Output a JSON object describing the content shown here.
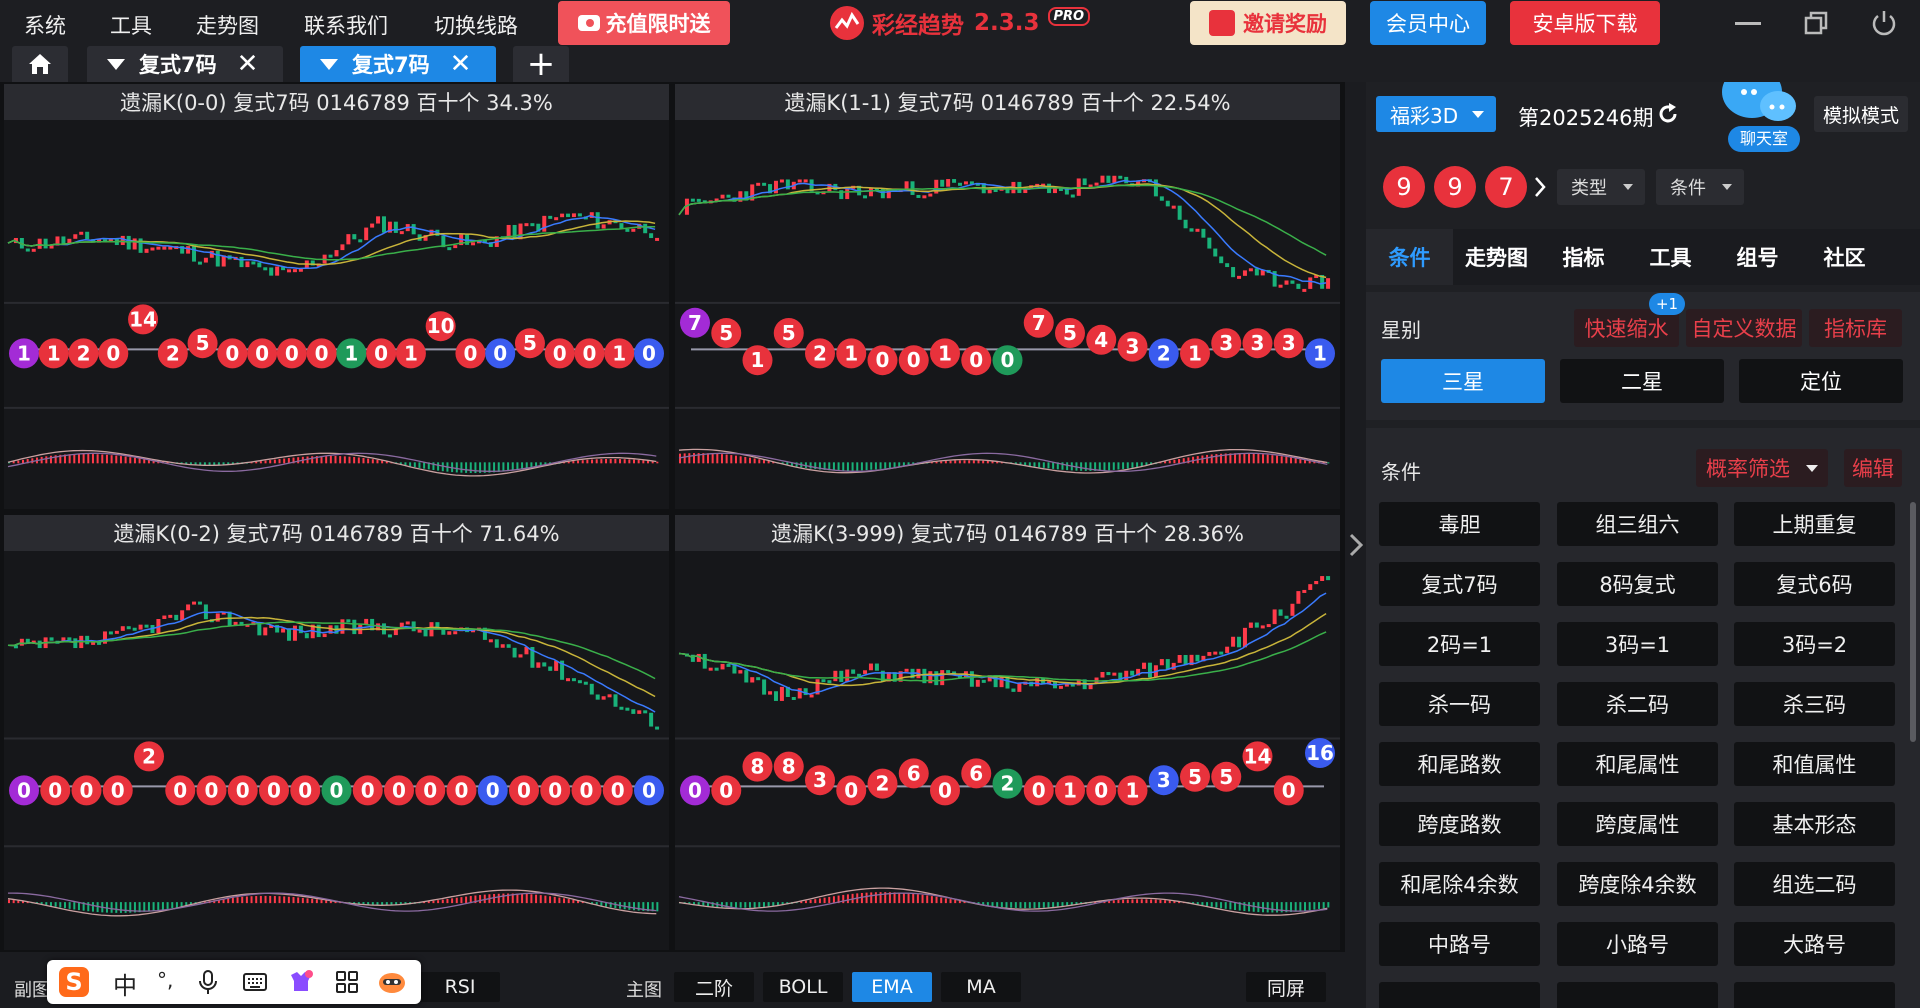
{
  "menu": [
    "系统",
    "工具",
    "走势图",
    "联系我们",
    "切换线路"
  ],
  "promo": "充值限时送",
  "app": {
    "name": "彩经趋势",
    "version": "2.3.3",
    "badge": "PRO"
  },
  "header_buttons": {
    "invite": "邀请奖励",
    "member": "会员中心",
    "android": "安卓版下载"
  },
  "tabs": [
    {
      "label": "复式7码"
    },
    {
      "label": "复式7码"
    }
  ],
  "colors": {
    "red": "#e8323c",
    "blue": "#1e88e5",
    "green": "#1f9a5a",
    "purple": "#a32bd6",
    "ball_blue": "#3a5bef"
  },
  "panels": [
    {
      "title": "遗漏K(0-0)  复式7码  0146789  百十个  34.3%",
      "balls": [
        {
          "n": "1",
          "c": "purple"
        },
        {
          "n": "1",
          "c": "red"
        },
        {
          "n": "2",
          "c": "red"
        },
        {
          "n": "0",
          "c": "red"
        },
        {
          "n": "14",
          "c": "red",
          "up": 1
        },
        {
          "n": "2",
          "c": "red"
        },
        {
          "n": "5",
          "c": "red",
          "up": 0.3
        },
        {
          "n": "0",
          "c": "red"
        },
        {
          "n": "0",
          "c": "red"
        },
        {
          "n": "0",
          "c": "red"
        },
        {
          "n": "0",
          "c": "red"
        },
        {
          "n": "1",
          "c": "green"
        },
        {
          "n": "0",
          "c": "red"
        },
        {
          "n": "1",
          "c": "red"
        },
        {
          "n": "10",
          "c": "red",
          "up": 0.8
        },
        {
          "n": "0",
          "c": "red"
        },
        {
          "n": "0",
          "c": "blue"
        },
        {
          "n": "5",
          "c": "red",
          "up": 0.3
        },
        {
          "n": "0",
          "c": "red"
        },
        {
          "n": "0",
          "c": "red"
        },
        {
          "n": "1",
          "c": "red"
        },
        {
          "n": "0",
          "c": "blue"
        }
      ]
    },
    {
      "title": "遗漏K(1-1)  复式7码  0146789  百十个  22.54%",
      "balls": [
        {
          "n": "7",
          "c": "purple",
          "up": 0.9
        },
        {
          "n": "5",
          "c": "red",
          "up": 0.6
        },
        {
          "n": "1",
          "c": "red",
          "up": -0.2
        },
        {
          "n": "5",
          "c": "red",
          "up": 0.6
        },
        {
          "n": "2",
          "c": "red"
        },
        {
          "n": "1",
          "c": "red"
        },
        {
          "n": "0",
          "c": "red",
          "up": -0.2
        },
        {
          "n": "0",
          "c": "red",
          "up": -0.2
        },
        {
          "n": "1",
          "c": "red"
        },
        {
          "n": "0",
          "c": "red",
          "up": -0.2
        },
        {
          "n": "0",
          "c": "green",
          "up": -0.2
        },
        {
          "n": "7",
          "c": "red",
          "up": 0.9
        },
        {
          "n": "5",
          "c": "red",
          "up": 0.6
        },
        {
          "n": "4",
          "c": "red",
          "up": 0.4
        },
        {
          "n": "3",
          "c": "red",
          "up": 0.2
        },
        {
          "n": "2",
          "c": "blue"
        },
        {
          "n": "1",
          "c": "red"
        },
        {
          "n": "3",
          "c": "red",
          "up": 0.3
        },
        {
          "n": "3",
          "c": "red",
          "up": 0.3
        },
        {
          "n": "3",
          "c": "red",
          "up": 0.3
        },
        {
          "n": "1",
          "c": "blue"
        }
      ]
    },
    {
      "title": "遗漏K(0-2)  复式7码  0146789  百十个  71.64%",
      "balls": [
        {
          "n": "0",
          "c": "purple"
        },
        {
          "n": "0",
          "c": "red"
        },
        {
          "n": "0",
          "c": "red"
        },
        {
          "n": "0",
          "c": "red"
        },
        {
          "n": "2",
          "c": "red",
          "up": 1
        },
        {
          "n": "0",
          "c": "red"
        },
        {
          "n": "0",
          "c": "red"
        },
        {
          "n": "0",
          "c": "red"
        },
        {
          "n": "0",
          "c": "red"
        },
        {
          "n": "0",
          "c": "red"
        },
        {
          "n": "0",
          "c": "green"
        },
        {
          "n": "0",
          "c": "red"
        },
        {
          "n": "0",
          "c": "red"
        },
        {
          "n": "0",
          "c": "red"
        },
        {
          "n": "0",
          "c": "red"
        },
        {
          "n": "0",
          "c": "blue"
        },
        {
          "n": "0",
          "c": "red"
        },
        {
          "n": "0",
          "c": "red"
        },
        {
          "n": "0",
          "c": "red"
        },
        {
          "n": "0",
          "c": "red"
        },
        {
          "n": "0",
          "c": "blue"
        }
      ]
    },
    {
      "title": "遗漏K(3-999)  复式7码  0146789  百十个  28.36%",
      "balls": [
        {
          "n": "0",
          "c": "purple"
        },
        {
          "n": "0",
          "c": "red"
        },
        {
          "n": "8",
          "c": "red",
          "up": 0.7
        },
        {
          "n": "8",
          "c": "red",
          "up": 0.7
        },
        {
          "n": "3",
          "c": "red",
          "up": 0.3
        },
        {
          "n": "0",
          "c": "red"
        },
        {
          "n": "2",
          "c": "red",
          "up": 0.2
        },
        {
          "n": "6",
          "c": "red",
          "up": 0.5
        },
        {
          "n": "0",
          "c": "red"
        },
        {
          "n": "6",
          "c": "red",
          "up": 0.5
        },
        {
          "n": "2",
          "c": "green",
          "up": 0.2
        },
        {
          "n": "0",
          "c": "red"
        },
        {
          "n": "1",
          "c": "red"
        },
        {
          "n": "0",
          "c": "red"
        },
        {
          "n": "1",
          "c": "red"
        },
        {
          "n": "3",
          "c": "blue",
          "up": 0.3
        },
        {
          "n": "5",
          "c": "red",
          "up": 0.4
        },
        {
          "n": "5",
          "c": "red",
          "up": 0.4
        },
        {
          "n": "14",
          "c": "red",
          "up": 1
        },
        {
          "n": "0",
          "c": "red"
        },
        {
          "n": "16",
          "c": "blue",
          "up": 1.1
        }
      ]
    }
  ],
  "sidebar": {
    "lottery": "福彩3D",
    "period": "第2025246期",
    "chat": "聊天室",
    "simulate": "模拟模式",
    "last_draw": [
      "9",
      "9",
      "7"
    ],
    "type_dd": "类型",
    "cond_dd": "条件",
    "subtabs": [
      "条件",
      "走势图",
      "指标",
      "工具",
      "组号",
      "社区"
    ],
    "star_label": "星别",
    "quick_badge": "+1",
    "links": [
      "快速缩水",
      "自定义数据",
      "指标库"
    ],
    "stars": [
      "三星",
      "二星",
      "定位"
    ],
    "cond_label": "条件",
    "prob_filter": "概率筛选",
    "edit": "编辑",
    "conditions": [
      "毒胆",
      "组三组六",
      "上期重复",
      "复式7码",
      "8码复式",
      "复式6码",
      "2码=1",
      "3码=1",
      "3码=2",
      "杀一码",
      "杀二码",
      "杀三码",
      "和尾路数",
      "和尾属性",
      "和值属性",
      "跨度路数",
      "跨度属性",
      "基本形态",
      "和尾除4余数",
      "跨度除4余数",
      "组选二码",
      "中路号",
      "小路号",
      "大路号"
    ]
  },
  "bottom": {
    "sub": "副图",
    "rsi": "RSI",
    "main": "主图",
    "buttons": [
      "二阶",
      "BOLL",
      "EMA",
      "MA"
    ],
    "sync": "同屏"
  },
  "ime": {
    "cn": "中",
    "punct": "°,"
  }
}
